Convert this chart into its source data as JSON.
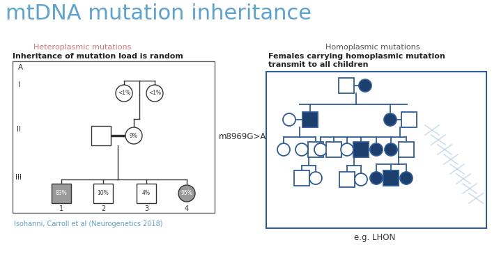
{
  "title": "mtDNA mutation inheritance",
  "title_color": "#5BA3D0",
  "title_fontsize": 22,
  "bg_color": "#ffffff",
  "left_section_title": "Heteroplasmic mutations",
  "left_section_title_color": "#E07070",
  "left_subtitle": "Inheritance of mutation load is random",
  "left_citation": "Isohanni, Carroll et al (Neurogenetics 2018)",
  "left_citation_color": "#5BA3D0",
  "mutation_label": "m8969G>A",
  "right_section_title": "Homoplasmic mutations",
  "right_section_title_color": "#555555",
  "right_subtitle": "Females carrying homoplasmic mutation\ntransmit to all children",
  "right_footnote": "e.g. LHON",
  "dark_blue": "#1C3F6E",
  "mid_blue": "#2E5B9A",
  "gray_fill": "#999999",
  "line_color": "#333333"
}
